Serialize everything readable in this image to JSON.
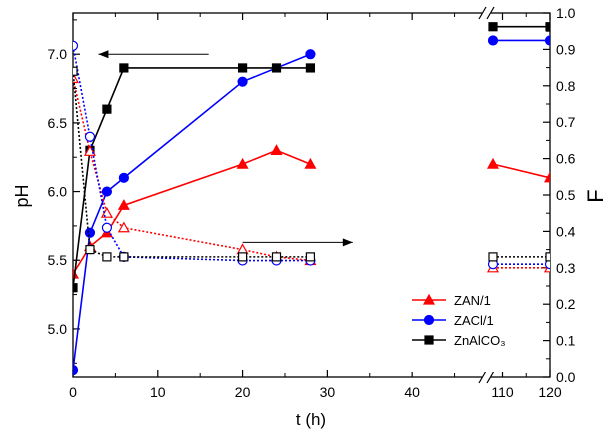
{
  "chart_data": {
    "type": "line",
    "xlabel": "t (h)",
    "ylabel_left": "pH",
    "ylabel_right": "F",
    "x_ticks": [
      "0",
      "10",
      "20",
      "30",
      "40",
      "110",
      "120"
    ],
    "y_left_ticks": [
      "5.0",
      "5.5",
      "6.0",
      "6.5",
      "7.0"
    ],
    "y_right_ticks": [
      "0.0",
      "0.1",
      "0.2",
      "0.3",
      "0.4",
      "0.5",
      "0.6",
      "0.7",
      "0.8",
      "0.9",
      "1.0"
    ],
    "y_left_range": [
      4.65,
      7.3
    ],
    "y_right_range": [
      0.0,
      1.0
    ],
    "x_axis_break": "between 48 and 108",
    "legend_position": "lower-right",
    "grid": false,
    "legend": [
      {
        "label": "ZAN/1",
        "color": "#ff0000",
        "marker": "triangle"
      },
      {
        "label": "ZACl/1",
        "color": "#0000ff",
        "marker": "circle"
      },
      {
        "label": "ZnAlCO₃",
        "color": "#000000",
        "marker": "square"
      }
    ],
    "series": [
      {
        "name": "ZAN/1",
        "axis": "pH",
        "color": "#ff0000",
        "marker": "triangle",
        "filled": true,
        "line": "solid",
        "x": [
          0,
          2,
          4,
          6,
          20,
          24,
          28,
          108,
          120
        ],
        "y": [
          5.4,
          5.6,
          5.7,
          5.9,
          6.2,
          6.3,
          6.2,
          6.2,
          6.1
        ]
      },
      {
        "name": "ZACl/1",
        "axis": "pH",
        "color": "#0000ff",
        "marker": "circle",
        "filled": true,
        "line": "solid",
        "x": [
          0,
          2,
          4,
          6,
          20,
          28,
          108,
          120
        ],
        "y": [
          4.7,
          5.7,
          6.0,
          6.1,
          6.8,
          7.0,
          7.1,
          7.1
        ]
      },
      {
        "name": "ZnAlCO₃",
        "axis": "pH",
        "color": "#000000",
        "marker": "square",
        "filled": true,
        "line": "solid",
        "x": [
          0,
          2,
          4,
          6,
          20,
          24,
          28,
          108,
          120
        ],
        "y": [
          5.3,
          6.3,
          6.6,
          6.9,
          6.9,
          6.9,
          6.9,
          7.2,
          7.2
        ]
      },
      {
        "name": "ZAN/1",
        "axis": "F",
        "color": "#ff0000",
        "marker": "triangle",
        "filled": false,
        "line": "dotted",
        "x": [
          0,
          2,
          4,
          6,
          20,
          24,
          28,
          108,
          120
        ],
        "y": [
          0.82,
          0.62,
          0.45,
          0.41,
          0.35,
          0.33,
          0.32,
          0.3,
          0.3
        ]
      },
      {
        "name": "ZACl/1",
        "axis": "F",
        "color": "#0000ff",
        "marker": "circle",
        "filled": false,
        "line": "dotted",
        "x": [
          0,
          2,
          4,
          6,
          20,
          24,
          28,
          108,
          120
        ],
        "y": [
          0.91,
          0.66,
          0.41,
          0.33,
          0.32,
          0.32,
          0.32,
          0.31,
          0.31
        ]
      },
      {
        "name": "ZnAlCO₃",
        "axis": "F",
        "color": "#000000",
        "marker": "square",
        "filled": false,
        "line": "dotted",
        "x": [
          0,
          2,
          4,
          6,
          20,
          24,
          28,
          108,
          120
        ],
        "y": [
          0.84,
          0.35,
          0.33,
          0.33,
          0.33,
          0.33,
          0.33,
          0.33,
          0.33
        ]
      }
    ],
    "arrows": [
      {
        "points_to": "left",
        "axis": "pH",
        "y": 7.0,
        "x_from": 16,
        "x_to": 3
      },
      {
        "points_to": "right",
        "axis": "F",
        "y": 0.37,
        "x_from": 20,
        "x_to": 33
      }
    ]
  }
}
